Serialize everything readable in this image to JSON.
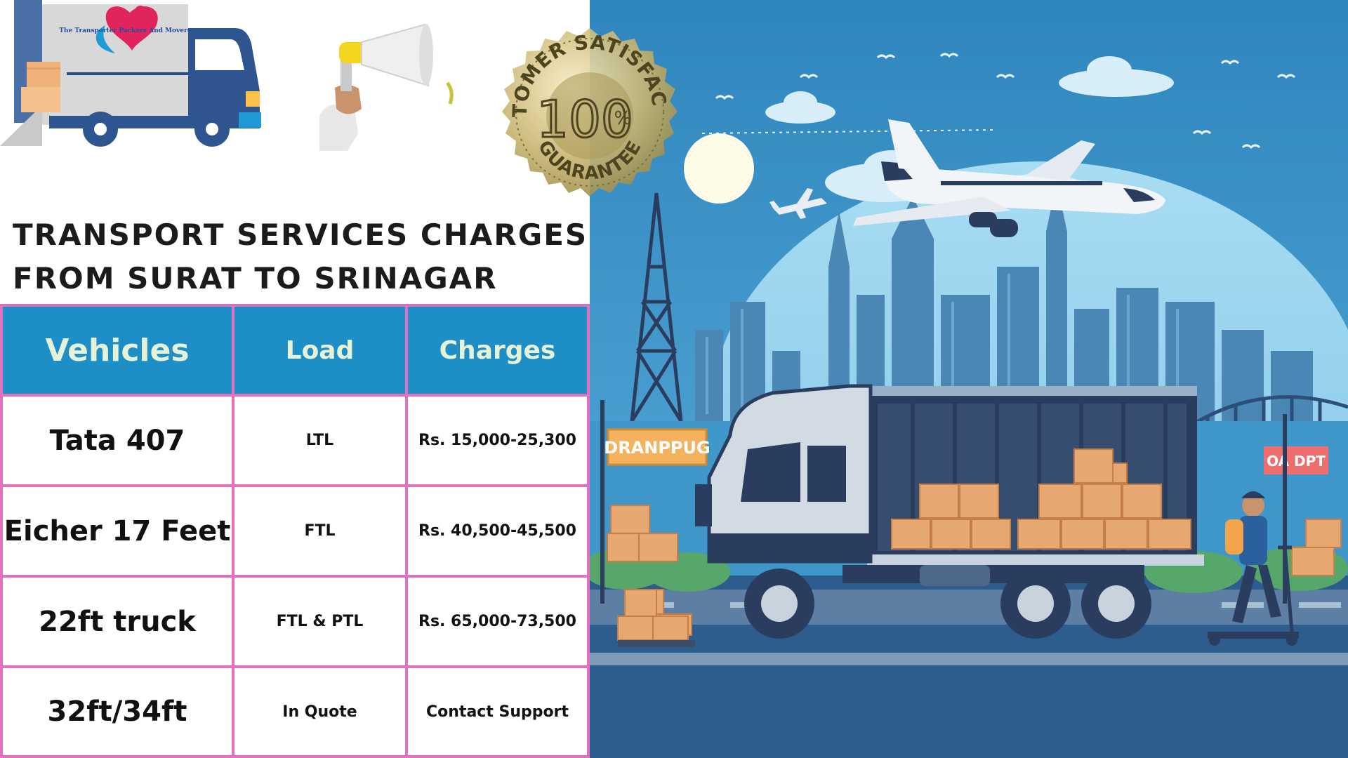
{
  "logo_text": "The Transporter Packers And Movers",
  "badge": {
    "top_text": "CUSTOMER SATISFACTION",
    "value": "100",
    "percent": "%",
    "bottom_text": "GUARANTEE"
  },
  "heading": {
    "line1": "TRANSPORT SERVICES CHARGES",
    "line2": "FROM SURAT TO SRINAGAR"
  },
  "table": {
    "headers": [
      "Vehicles",
      "Load",
      "Charges"
    ],
    "rows": [
      [
        "Tata 407",
        "LTL",
        "Rs. 15,000-25,300"
      ],
      [
        "Eicher 17 Feet",
        "FTL",
        "Rs. 40,500-45,500"
      ],
      [
        "22ft truck",
        "FTL & PTL",
        "Rs. 65,000-73,500"
      ],
      [
        "32ft/34ft",
        "In Quote",
        "Contact Support"
      ]
    ]
  },
  "scene": {
    "sign_left": "DRANPPUG",
    "sign_right": "OA DPT"
  },
  "colors": {
    "table_header": "#1e8fc6",
    "table_border": "#e36fc0",
    "header_text": "#e6f2d7",
    "sky": "#3a8fc4",
    "truck_body": "#2b3d5f"
  }
}
